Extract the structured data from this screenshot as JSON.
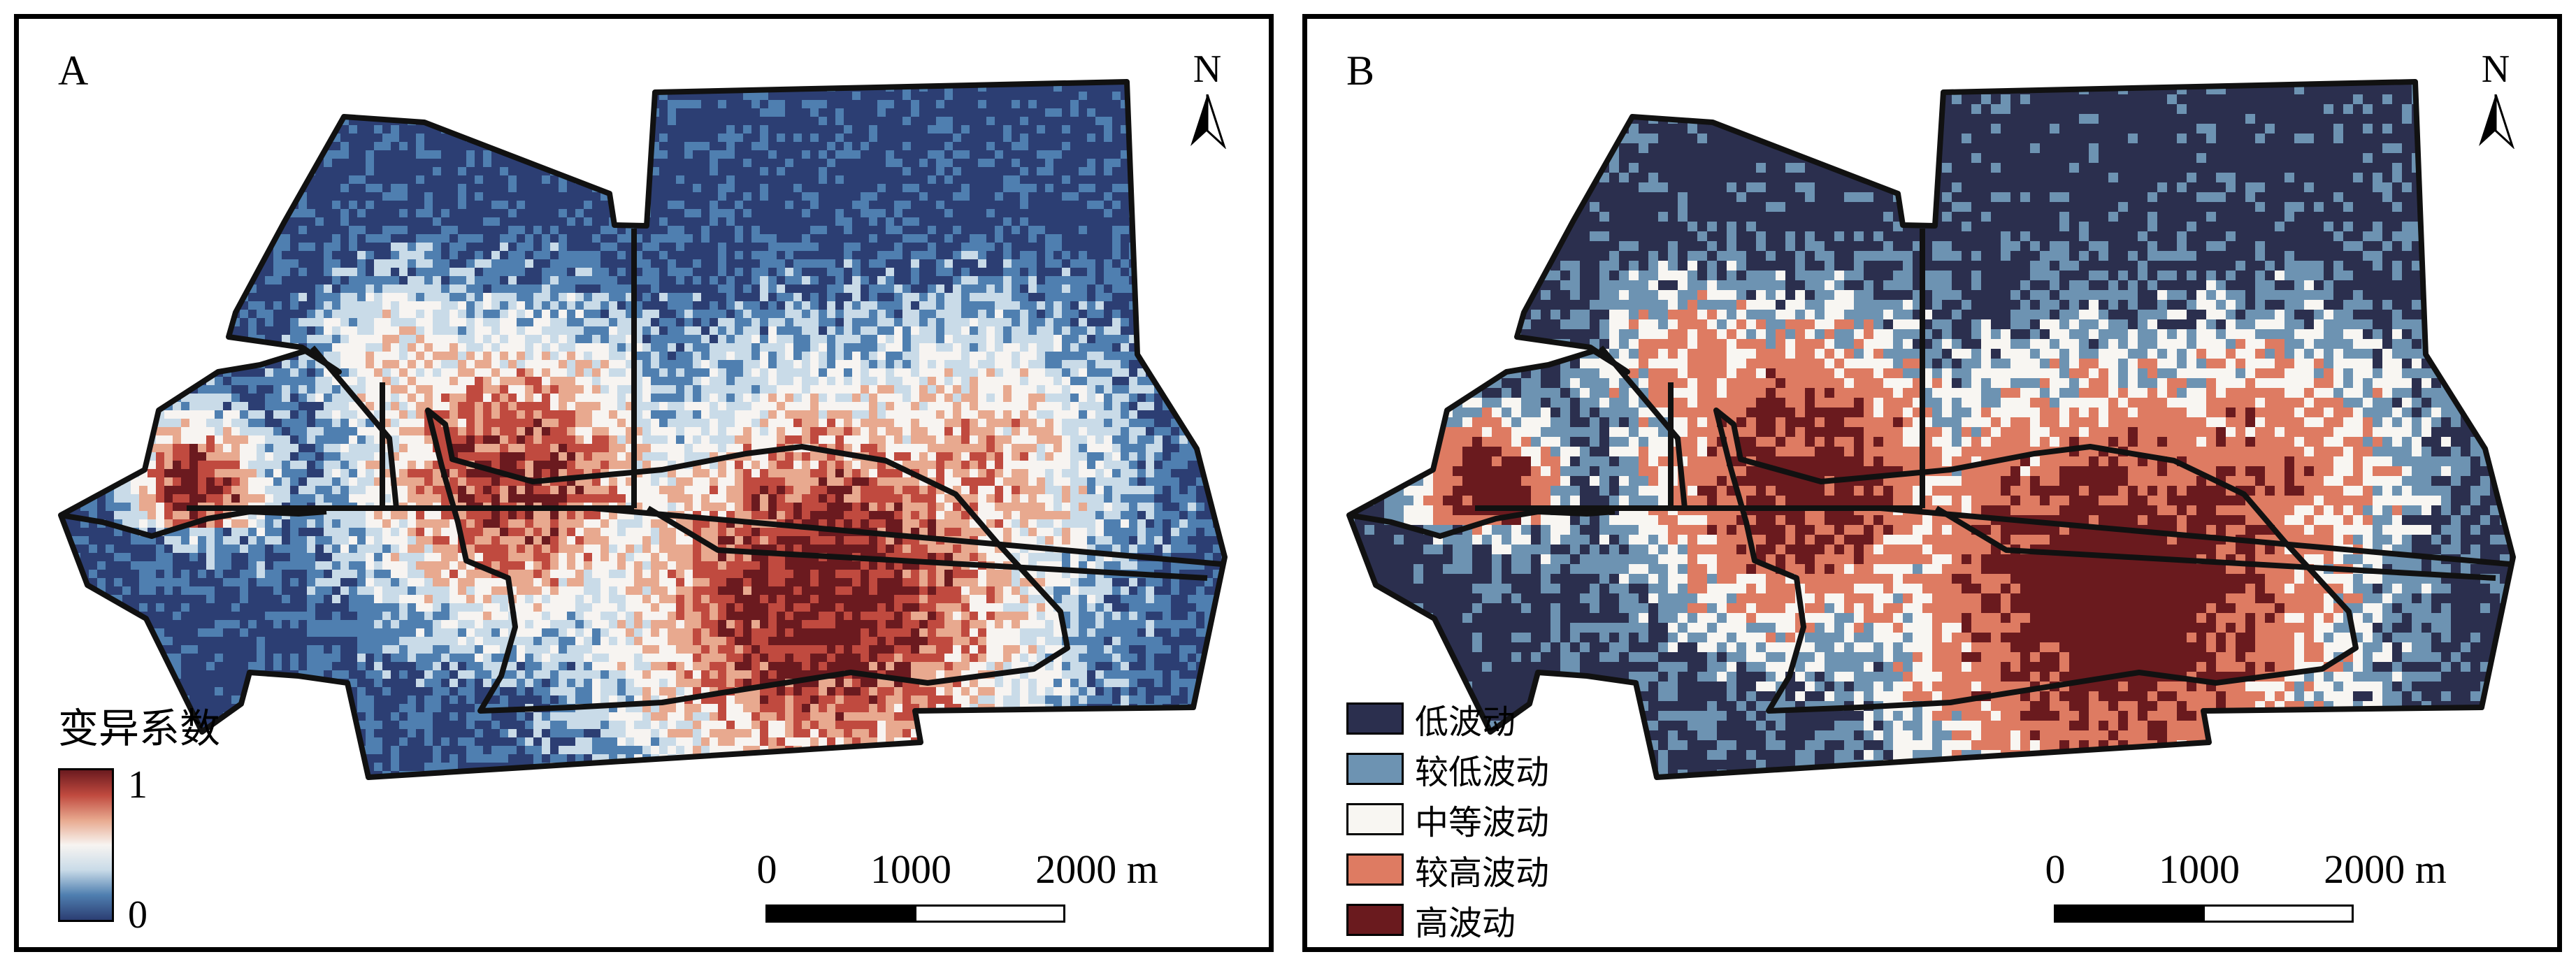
{
  "panels": [
    {
      "letter": "A",
      "north": "N",
      "colorbar": {
        "title": "变异系数",
        "max": "1",
        "min": "0",
        "colors": [
          "#2c3e73",
          "#4f7fb0",
          "#c9dbe8",
          "#f7f4f1",
          "#e8a98f",
          "#c04a3f",
          "#6b1a1f"
        ]
      },
      "scalebar": {
        "ticks": [
          "0",
          "1000",
          "2000 m"
        ]
      }
    },
    {
      "letter": "B",
      "north": "N",
      "legend": [
        {
          "label": "低波动",
          "color": "#2b2f4e"
        },
        {
          "label": "较低波动",
          "color": "#6d93b2"
        },
        {
          "label": "中等波动",
          "color": "#f8f6f2"
        },
        {
          "label": "较高波动",
          "color": "#de7b62"
        },
        {
          "label": "高波动",
          "color": "#6a1a1e"
        }
      ],
      "scalebar": {
        "ticks": [
          "0",
          "1000",
          "2000 m"
        ]
      }
    }
  ]
}
